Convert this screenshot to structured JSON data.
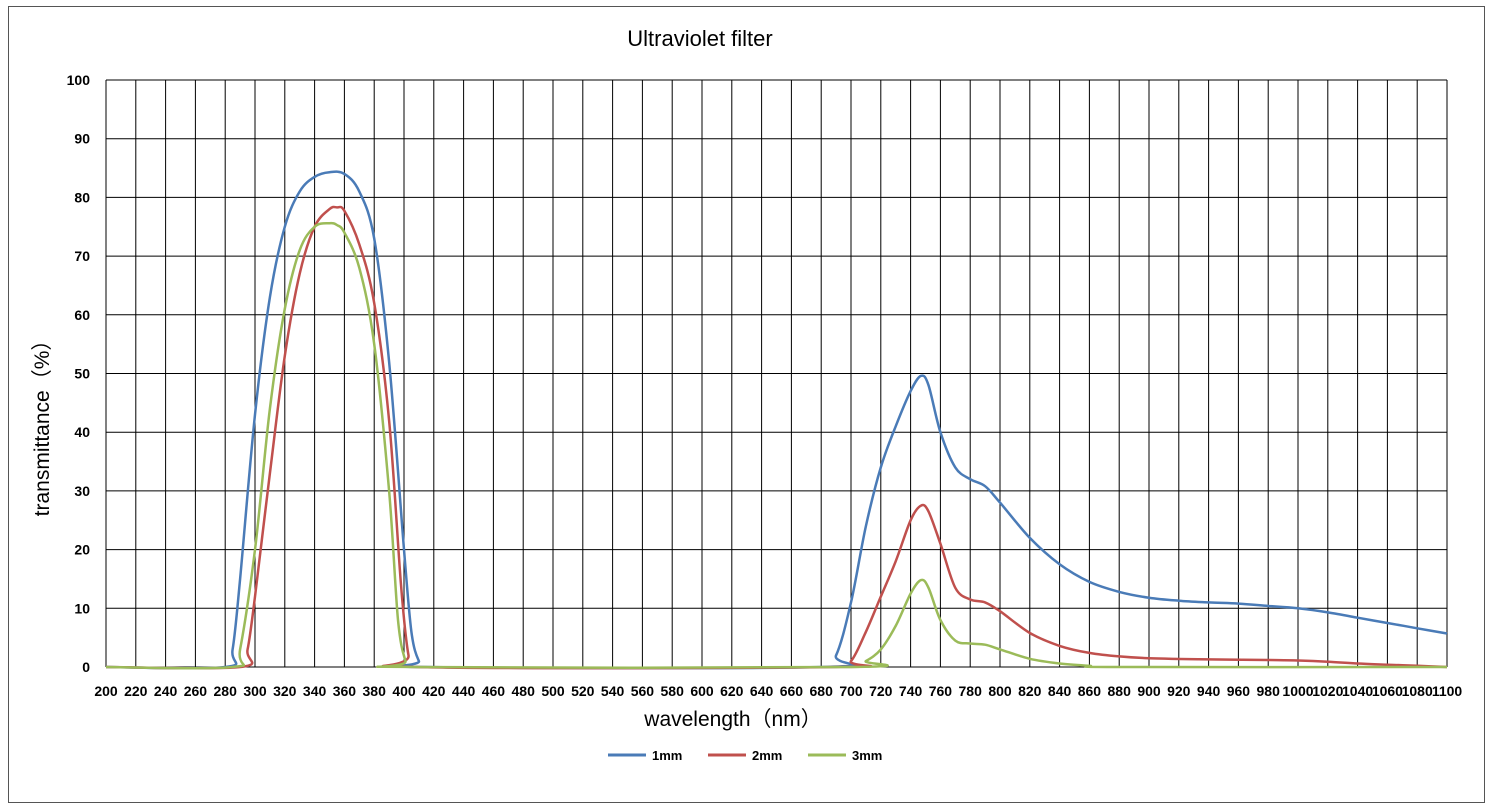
{
  "chart_data": {
    "type": "line",
    "title": "Ultraviolet filter",
    "xlabel": "wavelength（nm）",
    "ylabel": "transmittance（%）",
    "xlim": [
      200,
      1100
    ],
    "ylim": [
      0,
      100
    ],
    "grid": true,
    "legend_position": "bottom",
    "x_tick_labels": [
      "200",
      "220",
      "240",
      "260",
      "280",
      "300",
      "320",
      "340",
      "360",
      "380",
      "400",
      "420",
      "440",
      "460",
      "480",
      "500",
      "520",
      "540",
      "560",
      "580",
      "600",
      "620",
      "640",
      "660",
      "680",
      "700",
      "720",
      "740",
      "760",
      "780",
      "800",
      "820",
      "840",
      "860",
      "880",
      "900",
      "920",
      "940",
      "960",
      "980",
      "1000",
      "1020",
      "1040",
      "1060",
      "1080",
      "1100"
    ],
    "y_tick_labels": [
      "0",
      "10",
      "20",
      "30",
      "40",
      "50",
      "60",
      "70",
      "80",
      "90",
      "100"
    ],
    "series": [
      {
        "name": "1mm",
        "color": "#4a7bb7",
        "points": [
          [
            200,
            0
          ],
          [
            280,
            0
          ],
          [
            285,
            3
          ],
          [
            290,
            15
          ],
          [
            300,
            43
          ],
          [
            310,
            63
          ],
          [
            320,
            75
          ],
          [
            330,
            81
          ],
          [
            340,
            83.5
          ],
          [
            350,
            84.3
          ],
          [
            360,
            84
          ],
          [
            370,
            81
          ],
          [
            380,
            73
          ],
          [
            390,
            52
          ],
          [
            400,
            20
          ],
          [
            405,
            6
          ],
          [
            410,
            1
          ],
          [
            415,
            0
          ],
          [
            680,
            0
          ],
          [
            690,
            2
          ],
          [
            700,
            11
          ],
          [
            710,
            24
          ],
          [
            720,
            34
          ],
          [
            730,
            41
          ],
          [
            740,
            47
          ],
          [
            747,
            49.6
          ],
          [
            752,
            48
          ],
          [
            760,
            40
          ],
          [
            770,
            34
          ],
          [
            780,
            32
          ],
          [
            790,
            30.8
          ],
          [
            800,
            28
          ],
          [
            820,
            22
          ],
          [
            840,
            17.5
          ],
          [
            860,
            14.5
          ],
          [
            880,
            12.8
          ],
          [
            900,
            11.8
          ],
          [
            920,
            11.3
          ],
          [
            940,
            11
          ],
          [
            960,
            10.8
          ],
          [
            980,
            10.4
          ],
          [
            1000,
            10
          ],
          [
            1020,
            9.3
          ],
          [
            1040,
            8.4
          ],
          [
            1060,
            7.5
          ],
          [
            1080,
            6.6
          ],
          [
            1100,
            5.7
          ]
        ]
      },
      {
        "name": "2mm",
        "color": "#c0504d",
        "points": [
          [
            200,
            0
          ],
          [
            290,
            0
          ],
          [
            295,
            3
          ],
          [
            300,
            12
          ],
          [
            310,
            33
          ],
          [
            320,
            53
          ],
          [
            330,
            67
          ],
          [
            340,
            75
          ],
          [
            350,
            78
          ],
          [
            355,
            78.3
          ],
          [
            360,
            77.7
          ],
          [
            370,
            72
          ],
          [
            380,
            62
          ],
          [
            390,
            42
          ],
          [
            398,
            14
          ],
          [
            403,
            2
          ],
          [
            408,
            0
          ],
          [
            690,
            0
          ],
          [
            700,
            1
          ],
          [
            710,
            6
          ],
          [
            720,
            12
          ],
          [
            730,
            18
          ],
          [
            740,
            25
          ],
          [
            747,
            27.5
          ],
          [
            752,
            26.5
          ],
          [
            760,
            21
          ],
          [
            770,
            13.5
          ],
          [
            780,
            11.5
          ],
          [
            790,
            11
          ],
          [
            800,
            9.5
          ],
          [
            820,
            5.8
          ],
          [
            840,
            3.6
          ],
          [
            860,
            2.4
          ],
          [
            880,
            1.8
          ],
          [
            900,
            1.5
          ],
          [
            940,
            1.3
          ],
          [
            980,
            1.2
          ],
          [
            1000,
            1.1
          ],
          [
            1020,
            0.9
          ],
          [
            1040,
            0.6
          ],
          [
            1060,
            0.4
          ],
          [
            1080,
            0.2
          ],
          [
            1100,
            0
          ]
        ]
      },
      {
        "name": "3mm",
        "color": "#9bbb59",
        "points": [
          [
            200,
            0
          ],
          [
            285,
            0
          ],
          [
            290,
            3
          ],
          [
            300,
            20
          ],
          [
            310,
            44
          ],
          [
            320,
            61
          ],
          [
            330,
            71
          ],
          [
            340,
            75
          ],
          [
            350,
            75.6
          ],
          [
            355,
            75.3
          ],
          [
            360,
            74
          ],
          [
            370,
            68
          ],
          [
            380,
            55
          ],
          [
            390,
            30
          ],
          [
            396,
            8
          ],
          [
            401,
            1
          ],
          [
            405,
            0
          ],
          [
            700,
            0
          ],
          [
            710,
            1
          ],
          [
            720,
            3
          ],
          [
            730,
            7
          ],
          [
            740,
            12.5
          ],
          [
            747,
            14.8
          ],
          [
            752,
            13.5
          ],
          [
            760,
            8
          ],
          [
            770,
            4.5
          ],
          [
            780,
            4
          ],
          [
            790,
            3.8
          ],
          [
            800,
            3
          ],
          [
            820,
            1.4
          ],
          [
            840,
            0.6
          ],
          [
            860,
            0.2
          ],
          [
            880,
            0
          ],
          [
            1100,
            0
          ]
        ]
      }
    ]
  }
}
